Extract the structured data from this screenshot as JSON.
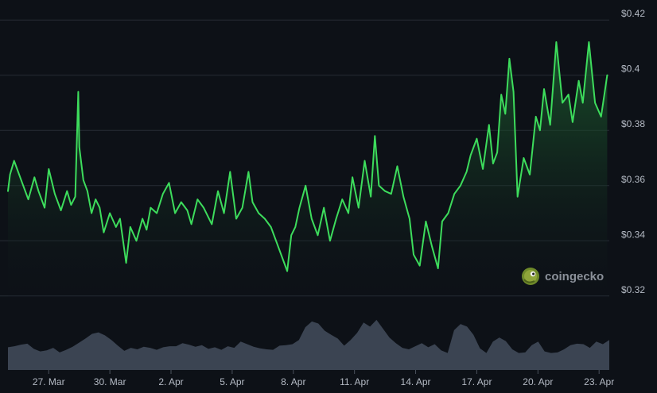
{
  "chart_data": {
    "type": "area",
    "title": "",
    "xlabel": "",
    "ylabel": "",
    "x_ticks": [
      "27. Mar",
      "30. Mar",
      "2. Apr",
      "5. Apr",
      "8. Apr",
      "11. Apr",
      "14. Apr",
      "17. Apr",
      "20. Apr",
      "23. Apr"
    ],
    "y_ticks": [
      "$0.32",
      "$0.34",
      "$0.36",
      "$0.38",
      "$0.4",
      "$0.42"
    ],
    "y_tick_values": [
      0.32,
      0.34,
      0.36,
      0.38,
      0.4,
      0.42
    ],
    "ylim": [
      0.3185,
      0.4215
    ],
    "xlim_days": [
      0,
      29.5
    ],
    "tick_days": [
      2,
      5,
      8,
      11,
      14,
      17,
      20,
      23,
      26,
      29
    ],
    "grid": true,
    "legend": "none",
    "colors": {
      "background": "#0d1117",
      "line": "#3ddc5c",
      "area_top": "#1f6b33",
      "grid": "#262c35",
      "volume": "#3b4452"
    },
    "series": [
      {
        "x": [
          0,
          0.1,
          0.3,
          0.5,
          0.7,
          1.0,
          1.3,
          1.5,
          1.8,
          2.0,
          2.3,
          2.6,
          2.9,
          3.1,
          3.3,
          3.45,
          3.5,
          3.7,
          3.9,
          4.1,
          4.3,
          4.5,
          4.7,
          5.0,
          5.3,
          5.5,
          5.8,
          6.0,
          6.3,
          6.6,
          6.8,
          7.0,
          7.3,
          7.6,
          7.9,
          8.2,
          8.5,
          8.8,
          9.0,
          9.3,
          9.6,
          10.0,
          10.3,
          10.6,
          10.9,
          11.2,
          11.5,
          11.8,
          12.0,
          12.3,
          12.6,
          12.9,
          13.2,
          13.5,
          13.7,
          13.9,
          14.1,
          14.3,
          14.6,
          14.9,
          15.2,
          15.5,
          15.8,
          16.1,
          16.4,
          16.7,
          16.9,
          17.2,
          17.5,
          17.8,
          18.0,
          18.2,
          18.5,
          18.8,
          19.1,
          19.4,
          19.7,
          19.9,
          20.2,
          20.5,
          20.8,
          21.1,
          21.3,
          21.6,
          21.9,
          22.2,
          22.5,
          22.7,
          23.0,
          23.3,
          23.6,
          23.8,
          24.0,
          24.2,
          24.4,
          24.6,
          24.8,
          25.0,
          25.3,
          25.6,
          25.9,
          26.1,
          26.3,
          26.6,
          26.9,
          27.2,
          27.5,
          27.7,
          28.0,
          28.2,
          28.5,
          28.8,
          29.1,
          29.4
        ],
        "values": [
          0.358,
          0.364,
          0.369,
          0.365,
          0.361,
          0.355,
          0.363,
          0.358,
          0.352,
          0.366,
          0.357,
          0.351,
          0.358,
          0.353,
          0.356,
          0.394,
          0.374,
          0.362,
          0.358,
          0.35,
          0.355,
          0.352,
          0.343,
          0.35,
          0.345,
          0.348,
          0.332,
          0.345,
          0.34,
          0.348,
          0.344,
          0.352,
          0.35,
          0.357,
          0.361,
          0.35,
          0.354,
          0.351,
          0.346,
          0.355,
          0.352,
          0.346,
          0.358,
          0.35,
          0.365,
          0.348,
          0.352,
          0.365,
          0.354,
          0.35,
          0.348,
          0.345,
          0.339,
          0.333,
          0.329,
          0.342,
          0.345,
          0.352,
          0.36,
          0.348,
          0.342,
          0.352,
          0.34,
          0.348,
          0.355,
          0.35,
          0.363,
          0.352,
          0.369,
          0.356,
          0.378,
          0.36,
          0.358,
          0.357,
          0.367,
          0.356,
          0.348,
          0.335,
          0.331,
          0.347,
          0.338,
          0.33,
          0.347,
          0.35,
          0.357,
          0.36,
          0.365,
          0.371,
          0.377,
          0.366,
          0.382,
          0.368,
          0.372,
          0.393,
          0.386,
          0.406,
          0.394,
          0.356,
          0.37,
          0.364,
          0.385,
          0.38,
          0.395,
          0.382,
          0.412,
          0.39,
          0.393,
          0.383,
          0.398,
          0.39,
          0.412,
          0.39,
          0.385,
          0.4
        ]
      }
    ],
    "volume": [
      0.44,
      0.46,
      0.49,
      0.51,
      0.41,
      0.36,
      0.38,
      0.43,
      0.34,
      0.39,
      0.45,
      0.53,
      0.61,
      0.7,
      0.73,
      0.67,
      0.58,
      0.47,
      0.37,
      0.43,
      0.4,
      0.45,
      0.43,
      0.39,
      0.44,
      0.46,
      0.46,
      0.52,
      0.49,
      0.45,
      0.48,
      0.41,
      0.44,
      0.39,
      0.46,
      0.43,
      0.55,
      0.5,
      0.45,
      0.42,
      0.4,
      0.39,
      0.47,
      0.48,
      0.5,
      0.58,
      0.83,
      0.94,
      0.9,
      0.76,
      0.68,
      0.61,
      0.47,
      0.58,
      0.72,
      0.92,
      0.84,
      0.97,
      0.8,
      0.63,
      0.52,
      0.43,
      0.4,
      0.46,
      0.52,
      0.44,
      0.5,
      0.38,
      0.33,
      0.77,
      0.89,
      0.84,
      0.68,
      0.42,
      0.33,
      0.55,
      0.63,
      0.56,
      0.4,
      0.33,
      0.34,
      0.48,
      0.55,
      0.36,
      0.33,
      0.34,
      0.4,
      0.48,
      0.51,
      0.5,
      0.43,
      0.55,
      0.5,
      0.58
    ],
    "watermark": {
      "text": "coingecko",
      "logo_icon": "gecko-logo-icon"
    }
  }
}
